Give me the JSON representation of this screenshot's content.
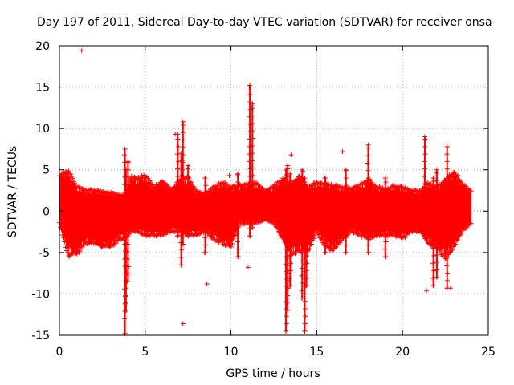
{
  "chart_data": {
    "type": "scatter",
    "title": "Day 197 of 2011, Sidereal Day-to-day VTEC variation (SDTVAR) for receiver onsa",
    "xlabel": "GPS time / hours",
    "ylabel": "SDTVAR / TECUs",
    "xlim": [
      0,
      25
    ],
    "ylim": [
      -15,
      20
    ],
    "x_ticks": [
      0,
      5,
      10,
      15,
      20,
      25
    ],
    "x_tick_labels": [
      "0",
      "5",
      "10",
      "15",
      "20",
      "25"
    ],
    "y_ticks": [
      -15,
      -10,
      -5,
      0,
      5,
      10,
      15,
      20
    ],
    "y_tick_labels": [
      "-15",
      "-10",
      "-5",
      "0",
      "5",
      "10",
      "15",
      "20"
    ],
    "grid": true,
    "marker": "+",
    "series": [
      {
        "name": "SDTVAR",
        "color": "#ff0000",
        "envelope": {
          "x": [
            0,
            0.5,
            1,
            1.5,
            2,
            2.5,
            3,
            3.5,
            3.8,
            4.2,
            4.5,
            5,
            5.5,
            6,
            6.5,
            7,
            7.5,
            8,
            8.5,
            9,
            9.5,
            10,
            10.5,
            11,
            11.5,
            12,
            12.5,
            13,
            13.5,
            14,
            14.5,
            15,
            15.5,
            16,
            16.5,
            17,
            17.5,
            18,
            18.5,
            19,
            19.5,
            20,
            20.5,
            21,
            21.5,
            22,
            22.5,
            23,
            23.5,
            24
          ],
          "upper": [
            4.5,
            5.2,
            3.0,
            2.6,
            2.6,
            2.4,
            2.3,
            2.0,
            2.0,
            4.5,
            4.0,
            4.5,
            3.0,
            3.8,
            2.7,
            3.8,
            4.2,
            2.5,
            2.2,
            3.0,
            3.6,
            3.0,
            3.2,
            3.5,
            3.5,
            2.5,
            3.2,
            4.0,
            3.5,
            4.5,
            3.0,
            3.6,
            3.5,
            3.2,
            3.0,
            2.8,
            3.2,
            4.0,
            3.0,
            2.8,
            3.2,
            3.0,
            2.6,
            2.5,
            3.5,
            3.0,
            4.0,
            5.0,
            3.5,
            2.5
          ],
          "lower": [
            -1.5,
            -5.5,
            -5.5,
            -4.0,
            -4.0,
            -4.5,
            -4.5,
            -3.5,
            -3.5,
            -2.5,
            -2.5,
            -3.0,
            -3.0,
            -3.0,
            -2.5,
            -2.5,
            -3.0,
            -3.0,
            -2.5,
            -3.5,
            -4.0,
            -4.5,
            -1.5,
            -1.5,
            -1.5,
            -1.0,
            -1.5,
            -3.5,
            -5.5,
            -5.0,
            -5.0,
            -2.5,
            -4.5,
            -5.0,
            -3.5,
            -2.5,
            -3.0,
            -3.5,
            -3.0,
            -3.0,
            -3.0,
            -3.5,
            -2.5,
            -2.5,
            -4.0,
            -4.5,
            -6.0,
            -4.5,
            -2.5,
            -1.5
          ]
        },
        "spikes": [
          {
            "x": 3.82,
            "min": -14.8,
            "max": 7.5
          },
          {
            "x": 3.88,
            "min": -12.0,
            "max": 5.0
          },
          {
            "x": 4.0,
            "min": -8.5,
            "max": 6.0
          },
          {
            "x": 6.9,
            "min": -3.0,
            "max": 9.3
          },
          {
            "x": 7.1,
            "min": -6.5,
            "max": 7.0
          },
          {
            "x": 7.2,
            "min": -4.0,
            "max": 10.8
          },
          {
            "x": 7.5,
            "min": -3.0,
            "max": 5.5
          },
          {
            "x": 8.5,
            "min": -5.0,
            "max": 4.0
          },
          {
            "x": 10.4,
            "min": -5.5,
            "max": 4.5
          },
          {
            "x": 11.1,
            "min": -3.0,
            "max": 15.2
          },
          {
            "x": 11.25,
            "min": -2.0,
            "max": 13.0
          },
          {
            "x": 13.2,
            "min": -14.5,
            "max": 5.0
          },
          {
            "x": 13.3,
            "min": -12.0,
            "max": 5.5
          },
          {
            "x": 13.45,
            "min": -9.0,
            "max": 4.5
          },
          {
            "x": 14.15,
            "min": -10.5,
            "max": 5.0
          },
          {
            "x": 14.3,
            "min": -14.5,
            "max": 4.0
          },
          {
            "x": 14.4,
            "min": -9.0,
            "max": 3.0
          },
          {
            "x": 15.5,
            "min": -5.0,
            "max": 4.0
          },
          {
            "x": 16.7,
            "min": -5.0,
            "max": 5.0
          },
          {
            "x": 18.0,
            "min": -5.0,
            "max": 8.0
          },
          {
            "x": 19.0,
            "min": -5.5,
            "max": 4.0
          },
          {
            "x": 21.3,
            "min": -3.0,
            "max": 9.0
          },
          {
            "x": 21.8,
            "min": -9.0,
            "max": 4.0
          },
          {
            "x": 22.0,
            "min": -8.0,
            "max": 5.0
          },
          {
            "x": 22.6,
            "min": -9.3,
            "max": 7.8
          }
        ],
        "outliers": [
          {
            "x": 1.3,
            "y": 19.4
          },
          {
            "x": 6.75,
            "y": 9.3
          },
          {
            "x": 7.2,
            "y": -13.6
          },
          {
            "x": 8.6,
            "y": -8.8
          },
          {
            "x": 9.9,
            "y": -4.0
          },
          {
            "x": 9.9,
            "y": 4.3
          },
          {
            "x": 11.0,
            "y": -6.8
          },
          {
            "x": 13.5,
            "y": 6.8
          },
          {
            "x": 16.5,
            "y": 7.2
          },
          {
            "x": 21.4,
            "y": -9.6
          },
          {
            "x": 22.8,
            "y": -9.3
          }
        ]
      }
    ]
  }
}
